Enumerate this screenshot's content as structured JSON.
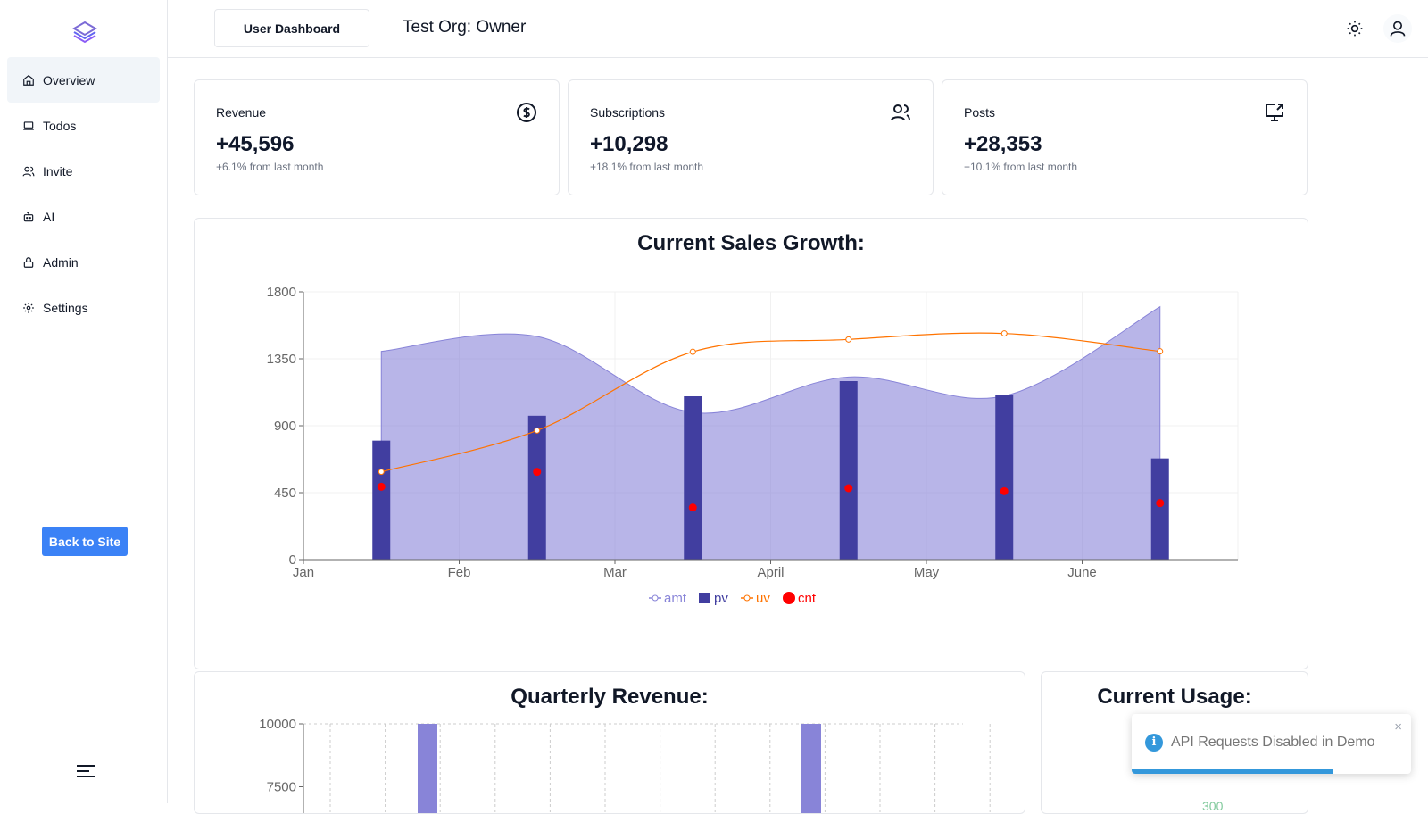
{
  "sidebar": {
    "items": [
      {
        "label": "Overview",
        "icon": "home-icon",
        "active": true
      },
      {
        "label": "Todos",
        "icon": "laptop-icon"
      },
      {
        "label": "Invite",
        "icon": "users-icon"
      },
      {
        "label": "AI",
        "icon": "bot-icon"
      },
      {
        "label": "Admin",
        "icon": "lock-icon"
      },
      {
        "label": "Settings",
        "icon": "gear-icon"
      }
    ],
    "back_label": "Back to Site"
  },
  "header": {
    "dashboard_label": "User Dashboard",
    "org_title": "Test Org: Owner"
  },
  "cards": [
    {
      "title": "Revenue",
      "value": "+45,596",
      "sub": "+6.1% from last month",
      "icon": "dollar-circle-icon"
    },
    {
      "title": "Subscriptions",
      "value": "+10,298",
      "sub": "+18.1% from last month",
      "icon": "users-icon"
    },
    {
      "title": "Posts",
      "value": "+28,353",
      "sub": "+10.1% from last month",
      "icon": "monitor-share-icon"
    }
  ],
  "sales_title": "Current Sales Growth:",
  "quarterly_title": "Quarterly Revenue:",
  "usage_title": "Current Usage:",
  "usage_partial_value": "300",
  "toast": {
    "message": "API Requests Disabled in Demo",
    "close": "×",
    "progress": 0.72
  },
  "colors": {
    "amt": "#8884d8",
    "pv": "#413ea0",
    "uv": "#ff7300",
    "cnt": "#ff0000",
    "accent": "#3b82f6"
  },
  "chart_data": [
    {
      "type": "bar",
      "title": "Current Sales Growth:",
      "categories": [
        "Jan",
        "Feb",
        "Mar",
        "April",
        "May",
        "June"
      ],
      "ylim": [
        0,
        1800
      ],
      "yticks": [
        "0",
        "450",
        "900",
        "1350",
        "1800"
      ],
      "grid": true,
      "legend": "bottom",
      "series": [
        {
          "name": "amt",
          "kind": "area",
          "values": [
            1400,
            1500,
            989,
            1228,
            1100,
            1700
          ]
        },
        {
          "name": "pv",
          "kind": "bar",
          "values": [
            800,
            967,
            1098,
            1200,
            1108,
            680
          ]
        },
        {
          "name": "uv",
          "kind": "line",
          "values": [
            590,
            868,
            1397,
            1480,
            1520,
            1400
          ]
        },
        {
          "name": "cnt",
          "kind": "scatter",
          "values": [
            490,
            590,
            350,
            480,
            460,
            380
          ]
        }
      ]
    },
    {
      "type": "bar",
      "title": "Quarterly Revenue:",
      "ylim": [
        0,
        10000
      ],
      "yticks": [
        "10000",
        "7500"
      ],
      "grid": true,
      "values": [
        10000,
        10000
      ]
    }
  ]
}
